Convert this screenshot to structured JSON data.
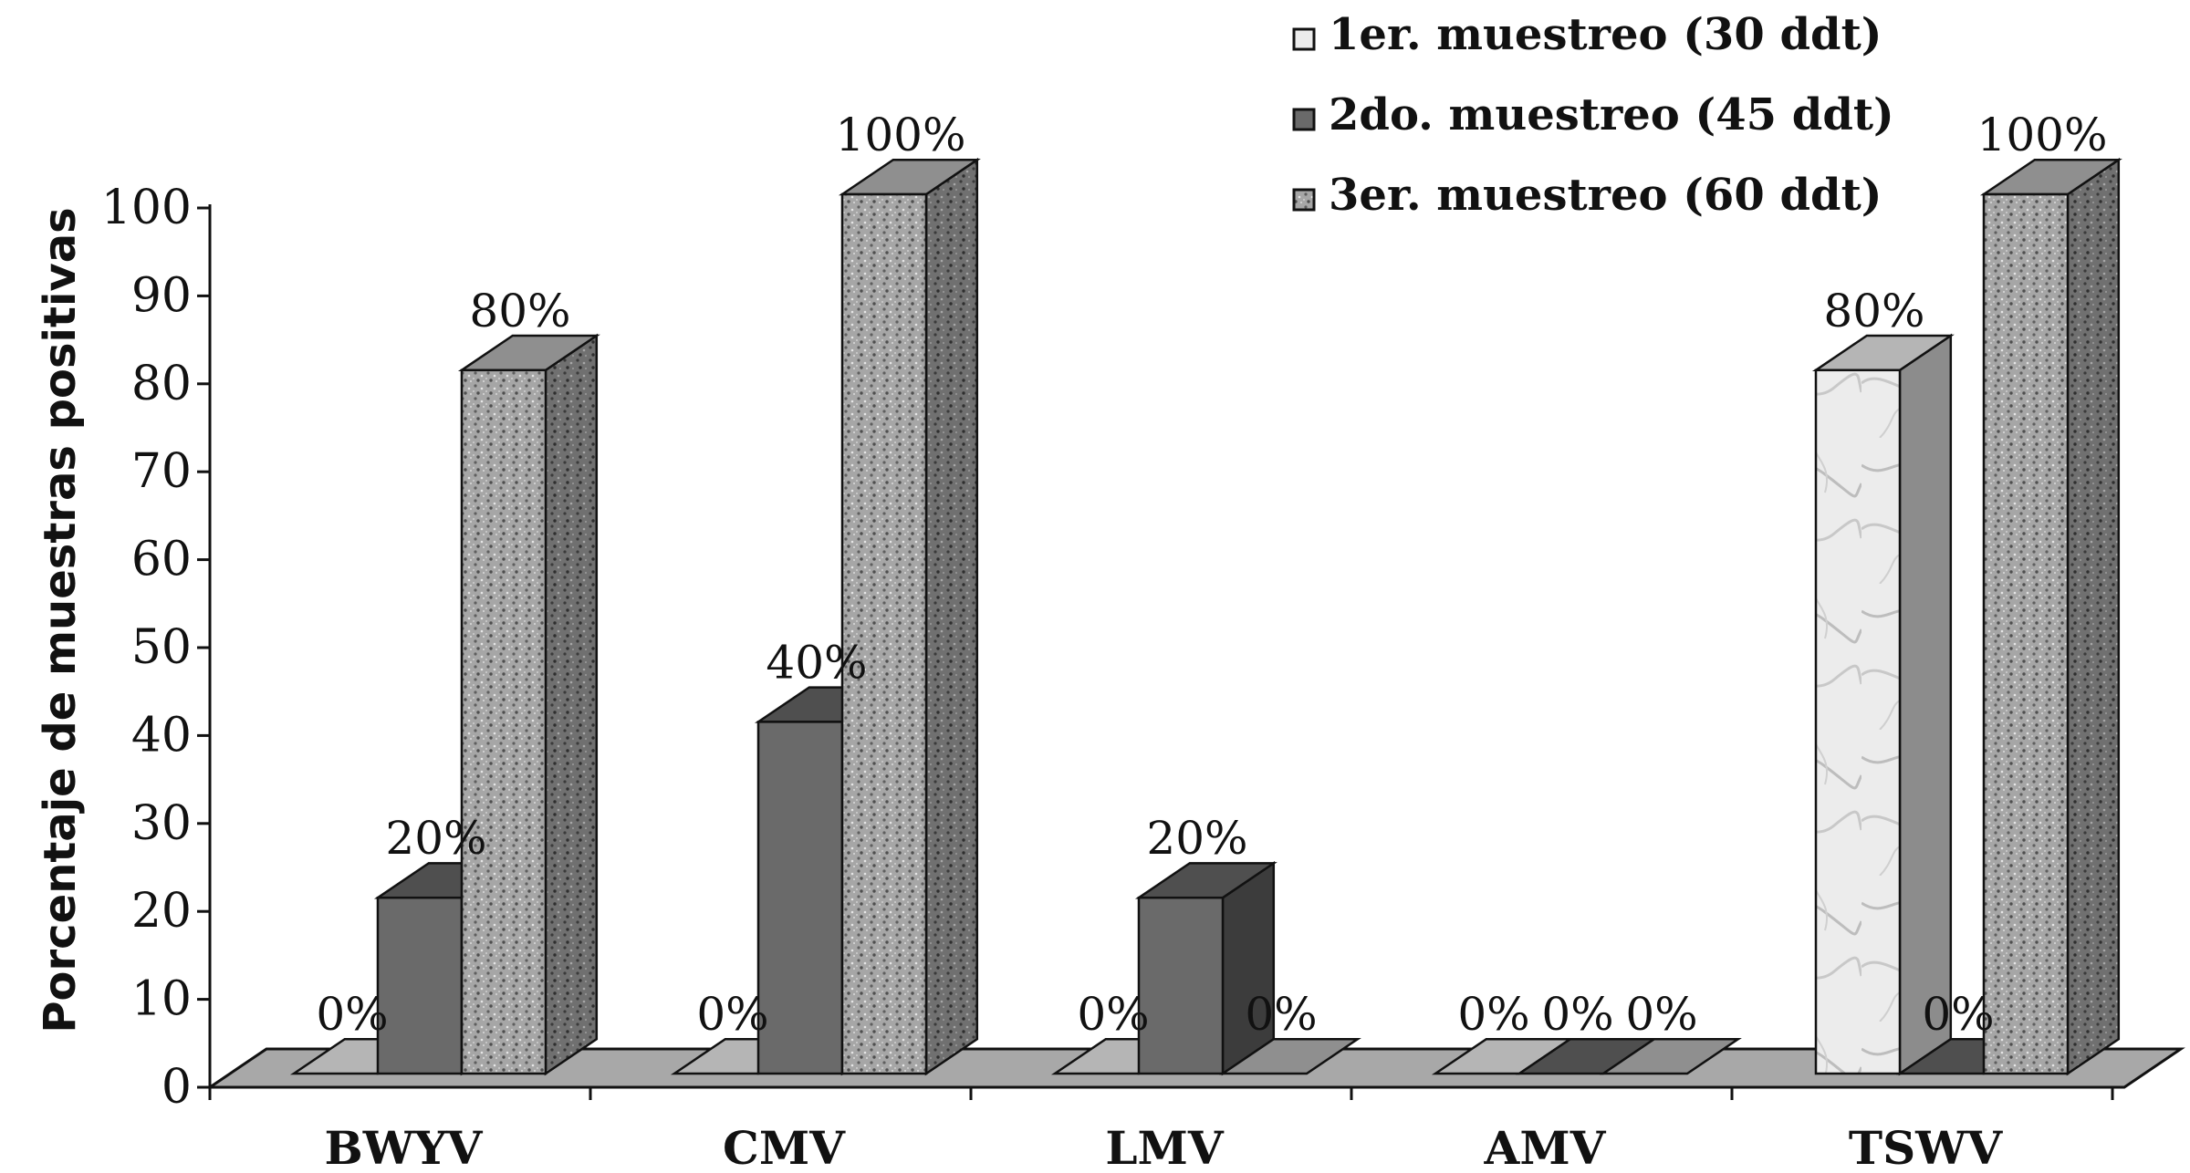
{
  "chart_data": {
    "type": "bar",
    "categories": [
      "BWYV",
      "CMV",
      "LMV",
      "AMV",
      "TSWV"
    ],
    "series": [
      {
        "name": "1er. muestreo (30 ddt)",
        "values": [
          0,
          0,
          0,
          0,
          80
        ],
        "labels": [
          "0%",
          "0%",
          "0%",
          "0%",
          "80%"
        ],
        "color": "#e4e4e4"
      },
      {
        "name": "2do. muestreo (45 ddt)",
        "values": [
          20,
          40,
          20,
          0,
          0
        ],
        "labels": [
          "20%",
          "40%",
          "20%",
          "0%",
          "0%"
        ],
        "color": "#6a6a6a"
      },
      {
        "name": "3er. muestreo (60 ddt)",
        "values": [
          80,
          100,
          0,
          0,
          100
        ],
        "labels": [
          "80%",
          "100%",
          "0%",
          "0%",
          "100%"
        ],
        "color": "#a8a8a8"
      }
    ],
    "yticks": [
      "0",
      "10",
      "20",
      "30",
      "40",
      "50",
      "60",
      "70",
      "80",
      "90",
      "100"
    ],
    "ylabel": "Porcentaje de muestras positivas",
    "xlabel": "",
    "ylim": [
      0,
      100
    ],
    "legend_position": "top-right",
    "grid": false,
    "floor_color": "#a8a8a8",
    "axis_color": "#111111"
  }
}
